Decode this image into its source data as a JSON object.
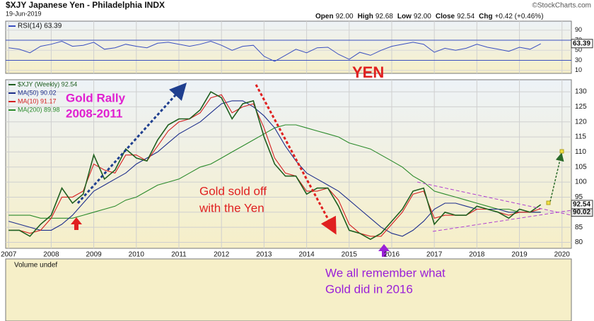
{
  "chart_data": {
    "type": "line",
    "title": "$XJY Japanese Yen - Philadelphia INDX",
    "date": "19-Jun-2019",
    "source": "©StockCharts.com",
    "quote": [
      {
        "label": "Open",
        "value": "92.00"
      },
      {
        "label": "High",
        "value": "92.68"
      },
      {
        "label": "Low",
        "value": "92.00"
      },
      {
        "label": "Close",
        "value": "92.54"
      },
      {
        "label": "Chg",
        "value": "+0.42 (+0.46%)"
      }
    ],
    "x": [
      2007.0,
      2007.25,
      2007.5,
      2007.75,
      2008.0,
      2008.25,
      2008.5,
      2008.75,
      2009.0,
      2009.25,
      2009.5,
      2009.75,
      2010.0,
      2010.25,
      2010.5,
      2010.75,
      2011.0,
      2011.25,
      2011.5,
      2011.75,
      2012.0,
      2012.25,
      2012.5,
      2012.75,
      2013.0,
      2013.25,
      2013.5,
      2013.75,
      2014.0,
      2014.25,
      2014.5,
      2014.75,
      2015.0,
      2015.25,
      2015.5,
      2015.75,
      2016.0,
      2016.25,
      2016.5,
      2016.75,
      2017.0,
      2017.25,
      2017.5,
      2017.75,
      2018.0,
      2018.25,
      2018.5,
      2018.75,
      2019.0,
      2019.25,
      2019.5
    ],
    "xlim": [
      2006.93,
      2020.22
    ],
    "xticks": [
      2007,
      2008,
      2009,
      2010,
      2011,
      2012,
      2013,
      2014,
      2015,
      2016,
      2017,
      2018,
      2019,
      2020
    ],
    "ylim": [
      78,
      134
    ],
    "yticks": [
      80,
      85,
      90,
      95,
      100,
      105,
      110,
      115,
      120,
      125,
      130
    ],
    "grid": true,
    "series": [
      {
        "name": "$XJY (Weekly) 92.54",
        "color": "#1f5f1f",
        "values": [
          84,
          84,
          82,
          86,
          89,
          98,
          93,
          96,
          109,
          101,
          104,
          111,
          108,
          107,
          114,
          119,
          121,
          121,
          124,
          130,
          128,
          121,
          126,
          127,
          115,
          106,
          102,
          102,
          96,
          98,
          98,
          92,
          84,
          83,
          81,
          83,
          87,
          91,
          97,
          98,
          86,
          90,
          89,
          89,
          92,
          91,
          90,
          88,
          91,
          90,
          92.5
        ]
      },
      {
        "name": "MA(50) 90.02",
        "color": "#1e2f8c",
        "values": [
          87,
          86,
          85,
          84,
          84,
          86,
          89,
          93,
          97,
          99,
          101,
          103,
          106,
          108,
          110,
          113,
          116,
          118,
          120,
          123,
          126,
          127,
          127,
          125,
          122,
          118,
          112,
          107,
          103,
          101,
          99,
          97,
          94,
          91,
          88,
          85,
          83,
          82,
          84,
          87,
          91,
          93,
          93,
          92,
          91,
          91,
          91,
          90,
          90,
          90,
          90
        ]
      },
      {
        "name": "MA(10) 91.17",
        "color": "#d42020",
        "values": [
          84,
          84,
          83,
          84,
          88,
          95,
          95,
          97,
          106,
          104,
          103,
          109,
          109,
          107,
          112,
          117,
          120,
          121,
          123,
          128,
          129,
          123,
          125,
          126,
          118,
          108,
          103,
          102,
          97,
          97,
          98,
          94,
          86,
          83,
          82,
          82,
          86,
          90,
          96,
          97,
          88,
          89,
          89,
          89,
          91,
          91,
          90,
          89,
          90,
          90,
          91.2
        ]
      },
      {
        "name": "MA(200) 89.98",
        "color": "#2a8a2a",
        "values": [
          89,
          89,
          89,
          88,
          88,
          88,
          88,
          89,
          90,
          91,
          92,
          94,
          95,
          97,
          99,
          100,
          101,
          103,
          105,
          106,
          108,
          110,
          112,
          114,
          116,
          118,
          119,
          119,
          118,
          117,
          116,
          115,
          113,
          112,
          111,
          109,
          107,
          105,
          102,
          100,
          97,
          96,
          95,
          94,
          93,
          92,
          91,
          91,
          90,
          90,
          90
        ]
      }
    ],
    "last_values": [
      92.54,
      90.02
    ],
    "rsi": {
      "name": "RSI(14) 63.39",
      "color": "#3a4fc0",
      "values": [
        55,
        52,
        45,
        58,
        62,
        68,
        58,
        60,
        66,
        52,
        55,
        62,
        58,
        55,
        64,
        66,
        62,
        58,
        62,
        68,
        60,
        50,
        58,
        60,
        38,
        28,
        40,
        52,
        45,
        55,
        56,
        42,
        32,
        46,
        40,
        50,
        58,
        62,
        66,
        62,
        46,
        54,
        50,
        54,
        62,
        56,
        52,
        48,
        56,
        52,
        63
      ],
      "ylim": [
        4,
        108
      ],
      "yticks": [
        10,
        30,
        50,
        70,
        90
      ],
      "bands": [
        30,
        70
      ],
      "last_value": 63.39
    },
    "volume_label": "Volume undef",
    "annotations": [
      "YEN",
      "Gold Rally",
      "2008-2011",
      "Gold sold off",
      "with the Yen",
      "We all remember what",
      "Gold did in 2016"
    ]
  }
}
